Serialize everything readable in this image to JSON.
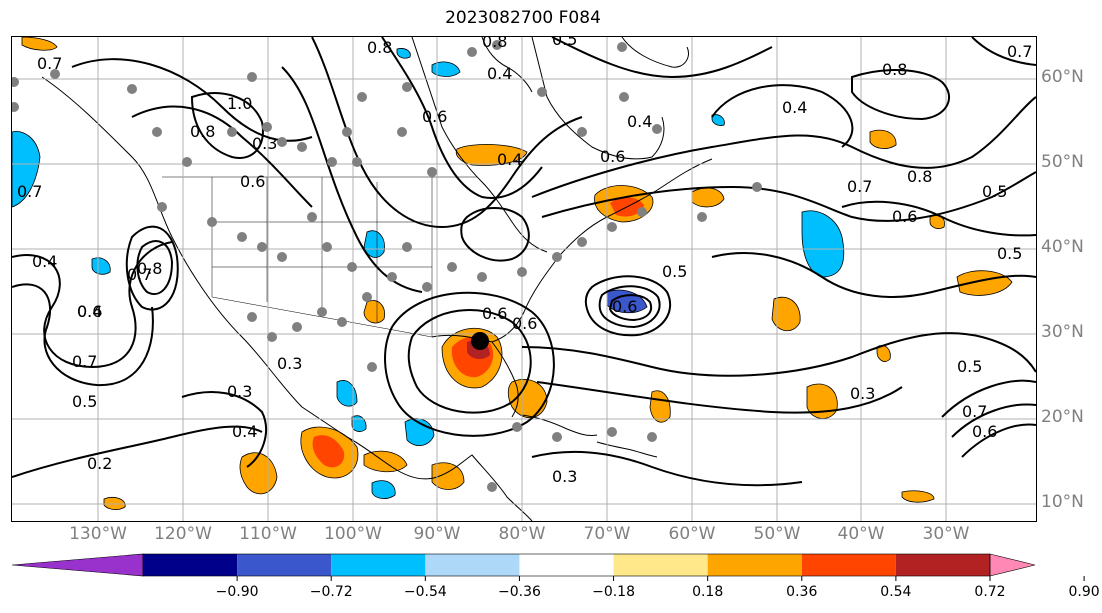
{
  "title": "2023082700 F084",
  "latitude_labels": [
    "60°N",
    "50°N",
    "40°N",
    "30°N",
    "20°N",
    "10°N"
  ],
  "longitude_labels": [
    "130°W",
    "120°W",
    "110°W",
    "100°W",
    "90°W",
    "80°W",
    "70°W",
    "60°W",
    "50°W",
    "40°W",
    "30°W"
  ],
  "contour_labels": [
    "0.7",
    "0.8",
    "1.0",
    "0.8",
    "0.6",
    "0.8",
    "0.4",
    "0.6",
    "0.4",
    "0.6",
    "0.8",
    "0.7",
    "0.5",
    "0.4",
    "0.8",
    "0.7",
    "0.6",
    "0.6",
    "0.4",
    "0.4",
    "0.8",
    "0.5",
    "0.3",
    "0.3",
    "0.4",
    "0.7",
    "0.6",
    "0.5",
    "0.7",
    "0.7",
    "0.6",
    "0.2",
    "0.3",
    "0.3",
    "0.5",
    "0.4",
    "0.5",
    "0.3",
    "0.7",
    "0.6",
    "0.5",
    "0.6"
  ],
  "colorbar": {
    "ticks": [
      "−0.90",
      "−0.72",
      "−0.54",
      "−0.36",
      "−0.18",
      "0.18",
      "0.36",
      "0.54",
      "0.72",
      "0.90"
    ],
    "colors": [
      "#9932cc",
      "#00008b",
      "#3a57cc",
      "#00bfff",
      "#add8f8",
      "#ffffff",
      "#ffe88a",
      "#ffa500",
      "#ff4500",
      "#b22222",
      "#ff88b4"
    ]
  }
}
